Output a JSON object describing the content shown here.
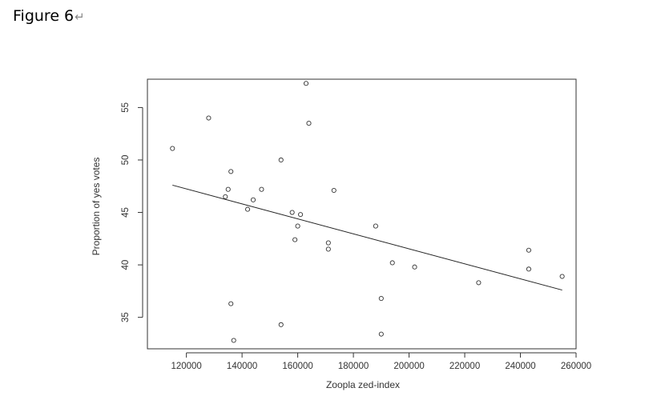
{
  "caption": {
    "text": "Figure 6",
    "mark": "↵"
  },
  "chart_data": {
    "type": "scatter",
    "title": "",
    "xlabel": "Zoopla zed-index",
    "ylabel": "Proportion of yes votes",
    "xlim": [
      106000,
      260000
    ],
    "ylim": [
      32,
      57.7
    ],
    "xticks": [
      120000,
      140000,
      160000,
      180000,
      200000,
      220000,
      240000,
      260000
    ],
    "yticks": [
      35,
      40,
      45,
      50,
      55
    ],
    "grid": false,
    "points": [
      {
        "x": 115000,
        "y": 51.1
      },
      {
        "x": 128000,
        "y": 54.0
      },
      {
        "x": 134000,
        "y": 46.5
      },
      {
        "x": 135000,
        "y": 47.2
      },
      {
        "x": 136000,
        "y": 48.9
      },
      {
        "x": 136000,
        "y": 36.3
      },
      {
        "x": 137000,
        "y": 32.8
      },
      {
        "x": 142000,
        "y": 45.3
      },
      {
        "x": 144000,
        "y": 46.2
      },
      {
        "x": 147000,
        "y": 47.2
      },
      {
        "x": 154000,
        "y": 50.0
      },
      {
        "x": 154000,
        "y": 34.3
      },
      {
        "x": 158000,
        "y": 45.0
      },
      {
        "x": 159000,
        "y": 42.4
      },
      {
        "x": 160000,
        "y": 43.7
      },
      {
        "x": 161000,
        "y": 44.8
      },
      {
        "x": 163000,
        "y": 57.3
      },
      {
        "x": 164000,
        "y": 53.5
      },
      {
        "x": 171000,
        "y": 42.1
      },
      {
        "x": 171000,
        "y": 41.5
      },
      {
        "x": 173000,
        "y": 47.1
      },
      {
        "x": 188000,
        "y": 43.7
      },
      {
        "x": 190000,
        "y": 36.8
      },
      {
        "x": 190000,
        "y": 33.4
      },
      {
        "x": 194000,
        "y": 40.2
      },
      {
        "x": 202000,
        "y": 39.8
      },
      {
        "x": 225000,
        "y": 38.3
      },
      {
        "x": 243000,
        "y": 41.4
      },
      {
        "x": 243000,
        "y": 39.6
      },
      {
        "x": 255000,
        "y": 38.9
      }
    ],
    "fit_line": {
      "x": [
        115000,
        255000
      ],
      "y": [
        47.6,
        37.6
      ]
    }
  }
}
